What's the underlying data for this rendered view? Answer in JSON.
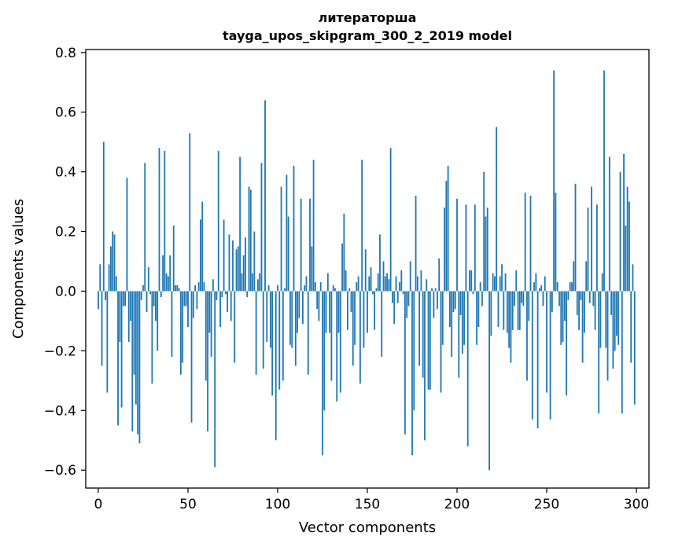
{
  "chart_data": {
    "type": "bar",
    "title": "литераторша",
    "subtitle": "tayga_upos_skipgram_300_2_2019 model",
    "xlabel": "Vector components",
    "ylabel": "Components values",
    "xlim": [
      -7,
      307
    ],
    "ylim": [
      -0.66,
      0.81
    ],
    "xticks": [
      0,
      50,
      100,
      150,
      200,
      250,
      300
    ],
    "yticks": [
      -0.6,
      -0.4,
      -0.2,
      0.0,
      0.2,
      0.4,
      0.6,
      0.8
    ],
    "ytick_labels": [
      "−0.6",
      "−0.4",
      "−0.2",
      "0.0",
      "0.2",
      "0.4",
      "0.6",
      "0.8"
    ],
    "grid": false,
    "bar_color": "#1f77b4",
    "values": [
      -0.06,
      0.09,
      -0.25,
      0.5,
      -0.03,
      -0.34,
      0.09,
      0.15,
      0.2,
      0.19,
      0.05,
      -0.45,
      -0.17,
      -0.39,
      -0.05,
      -0.05,
      0.38,
      -0.17,
      -0.1,
      -0.47,
      -0.28,
      -0.38,
      -0.48,
      -0.51,
      -0.03,
      0.02,
      0.43,
      -0.07,
      0.08,
      -0.01,
      -0.31,
      -0.05,
      -0.1,
      -0.2,
      0.48,
      -0.02,
      0.12,
      0.47,
      0.06,
      0.05,
      0.12,
      -0.22,
      0.22,
      0.02,
      0.02,
      0.01,
      -0.28,
      -0.24,
      -0.05,
      -0.05,
      -0.12,
      0.53,
      -0.44,
      -0.09,
      0.02,
      -0.06,
      0.03,
      0.24,
      0.3,
      0.03,
      -0.3,
      -0.47,
      -0.14,
      -0.22,
      0.04,
      -0.59,
      -0.03,
      0.47,
      -0.12,
      -0.02,
      0.24,
      -0.01,
      -0.07,
      0.19,
      -0.1,
      0.17,
      -0.24,
      0.14,
      0.15,
      0.45,
      0.06,
      0.12,
      0.18,
      -0.02,
      0.35,
      0.34,
      0.06,
      0.2,
      -0.28,
      0.04,
      0.06,
      0.43,
      -0.26,
      0.64,
      -0.17,
      0.02,
      -0.19,
      -0.35,
      0.0,
      -0.5,
      0.02,
      -0.33,
      0.35,
      -0.3,
      0.01,
      0.39,
      0.25,
      -0.18,
      -0.19,
      0.42,
      -0.25,
      -0.14,
      -0.09,
      0.31,
      -0.11,
      0.02,
      0.05,
      -0.28,
      0.31,
      0.15,
      0.44,
      0.03,
      -0.06,
      -0.1,
      0.03,
      -0.55,
      -0.4,
      -0.14,
      0.06,
      -0.14,
      -0.3,
      0.02,
      0.01,
      -0.37,
      -0.14,
      -0.34,
      0.16,
      0.26,
      0.07,
      -0.13,
      0.01,
      -0.07,
      -0.25,
      -0.18,
      0.03,
      0.05,
      -0.31,
      0.44,
      -0.19,
      0.14,
      -0.14,
      0.05,
      0.08,
      -0.01,
      -0.13,
      0.01,
      0.06,
      0.19,
      -0.22,
      0.1,
      0.05,
      0.06,
      0.04,
      0.48,
      -0.04,
      -0.11,
      0.05,
      -0.04,
      0.03,
      0.07,
      -0.01,
      -0.48,
      -0.09,
      -0.05,
      0.1,
      -0.55,
      -0.4,
      0.32,
      0.05,
      -0.25,
      0.07,
      -0.29,
      -0.5,
      0.04,
      -0.33,
      -0.33,
      0.01,
      -0.09,
      0.01,
      -0.06,
      0.11,
      -0.34,
      -0.18,
      0.28,
      0.37,
      0.42,
      -0.12,
      -0.22,
      -0.07,
      -0.06,
      0.31,
      -0.29,
      -0.08,
      -0.21,
      -0.18,
      0.29,
      -0.52,
      0.07,
      0.07,
      -0.01,
      0.29,
      -0.18,
      -0.12,
      0.03,
      -0.05,
      0.4,
      0.25,
      0.28,
      -0.6,
      -0.15,
      0.06,
      0.05,
      0.55,
      -0.12,
      0.05,
      0.09,
      -0.13,
      0.06,
      -0.14,
      -0.19,
      -0.24,
      -0.13,
      -0.05,
      0.07,
      -0.13,
      -0.13,
      -0.04,
      -0.05,
      0.33,
      -0.3,
      -0.1,
      0.32,
      -0.43,
      0.03,
      0.06,
      -0.46,
      0.01,
      0.02,
      -0.05,
      0.05,
      -0.34,
      0.0,
      -0.43,
      -0.07,
      0.74,
      0.33,
      0.03,
      -0.05,
      -0.18,
      -0.17,
      -0.1,
      -0.35,
      -0.03,
      0.03,
      0.03,
      0.1,
      0.36,
      -0.08,
      -0.13,
      -0.03,
      -0.24,
      -0.14,
      0.1,
      0.28,
      -0.04,
      0.35,
      -0.05,
      -0.13,
      0.29,
      -0.41,
      -0.19,
      0.06,
      0.74,
      -0.19,
      -0.3,
      0.45,
      -0.08,
      -0.26,
      -0.2,
      -0.15,
      -0.18,
      0.4,
      -0.41,
      0.46,
      0.22,
      0.35,
      0.3,
      -0.24,
      0.09,
      -0.38
    ]
  }
}
